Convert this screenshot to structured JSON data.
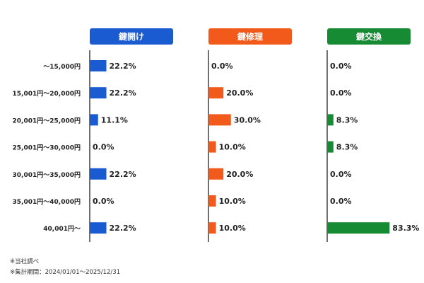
{
  "chart_data": {
    "type": "bar",
    "categories": [
      "〜15,000円",
      "15,001円〜20,000円",
      "20,001円〜25,000円",
      "25,001円〜30,000円",
      "30,001円〜35,000円",
      "35,001円〜40,000円",
      "40,001円〜"
    ],
    "series": [
      {
        "name": "鍵開け",
        "color": "#1a5bd1",
        "values": [
          22.2,
          22.2,
          11.1,
          0.0,
          22.2,
          0.0,
          22.2
        ]
      },
      {
        "name": "鍵修理",
        "color": "#f15a1b",
        "values": [
          0.0,
          20.0,
          30.0,
          10.0,
          20.0,
          10.0,
          10.0
        ]
      },
      {
        "name": "鍵交換",
        "color": "#178a34",
        "values": [
          0.0,
          0.0,
          8.3,
          8.3,
          0.0,
          0.0,
          83.3
        ]
      }
    ],
    "value_suffix": "%",
    "xlim": [
      0,
      100
    ]
  },
  "footnotes": {
    "note1": "※当社調べ",
    "note2": "※集計期間：2024/01/01〜2025/12/31"
  }
}
